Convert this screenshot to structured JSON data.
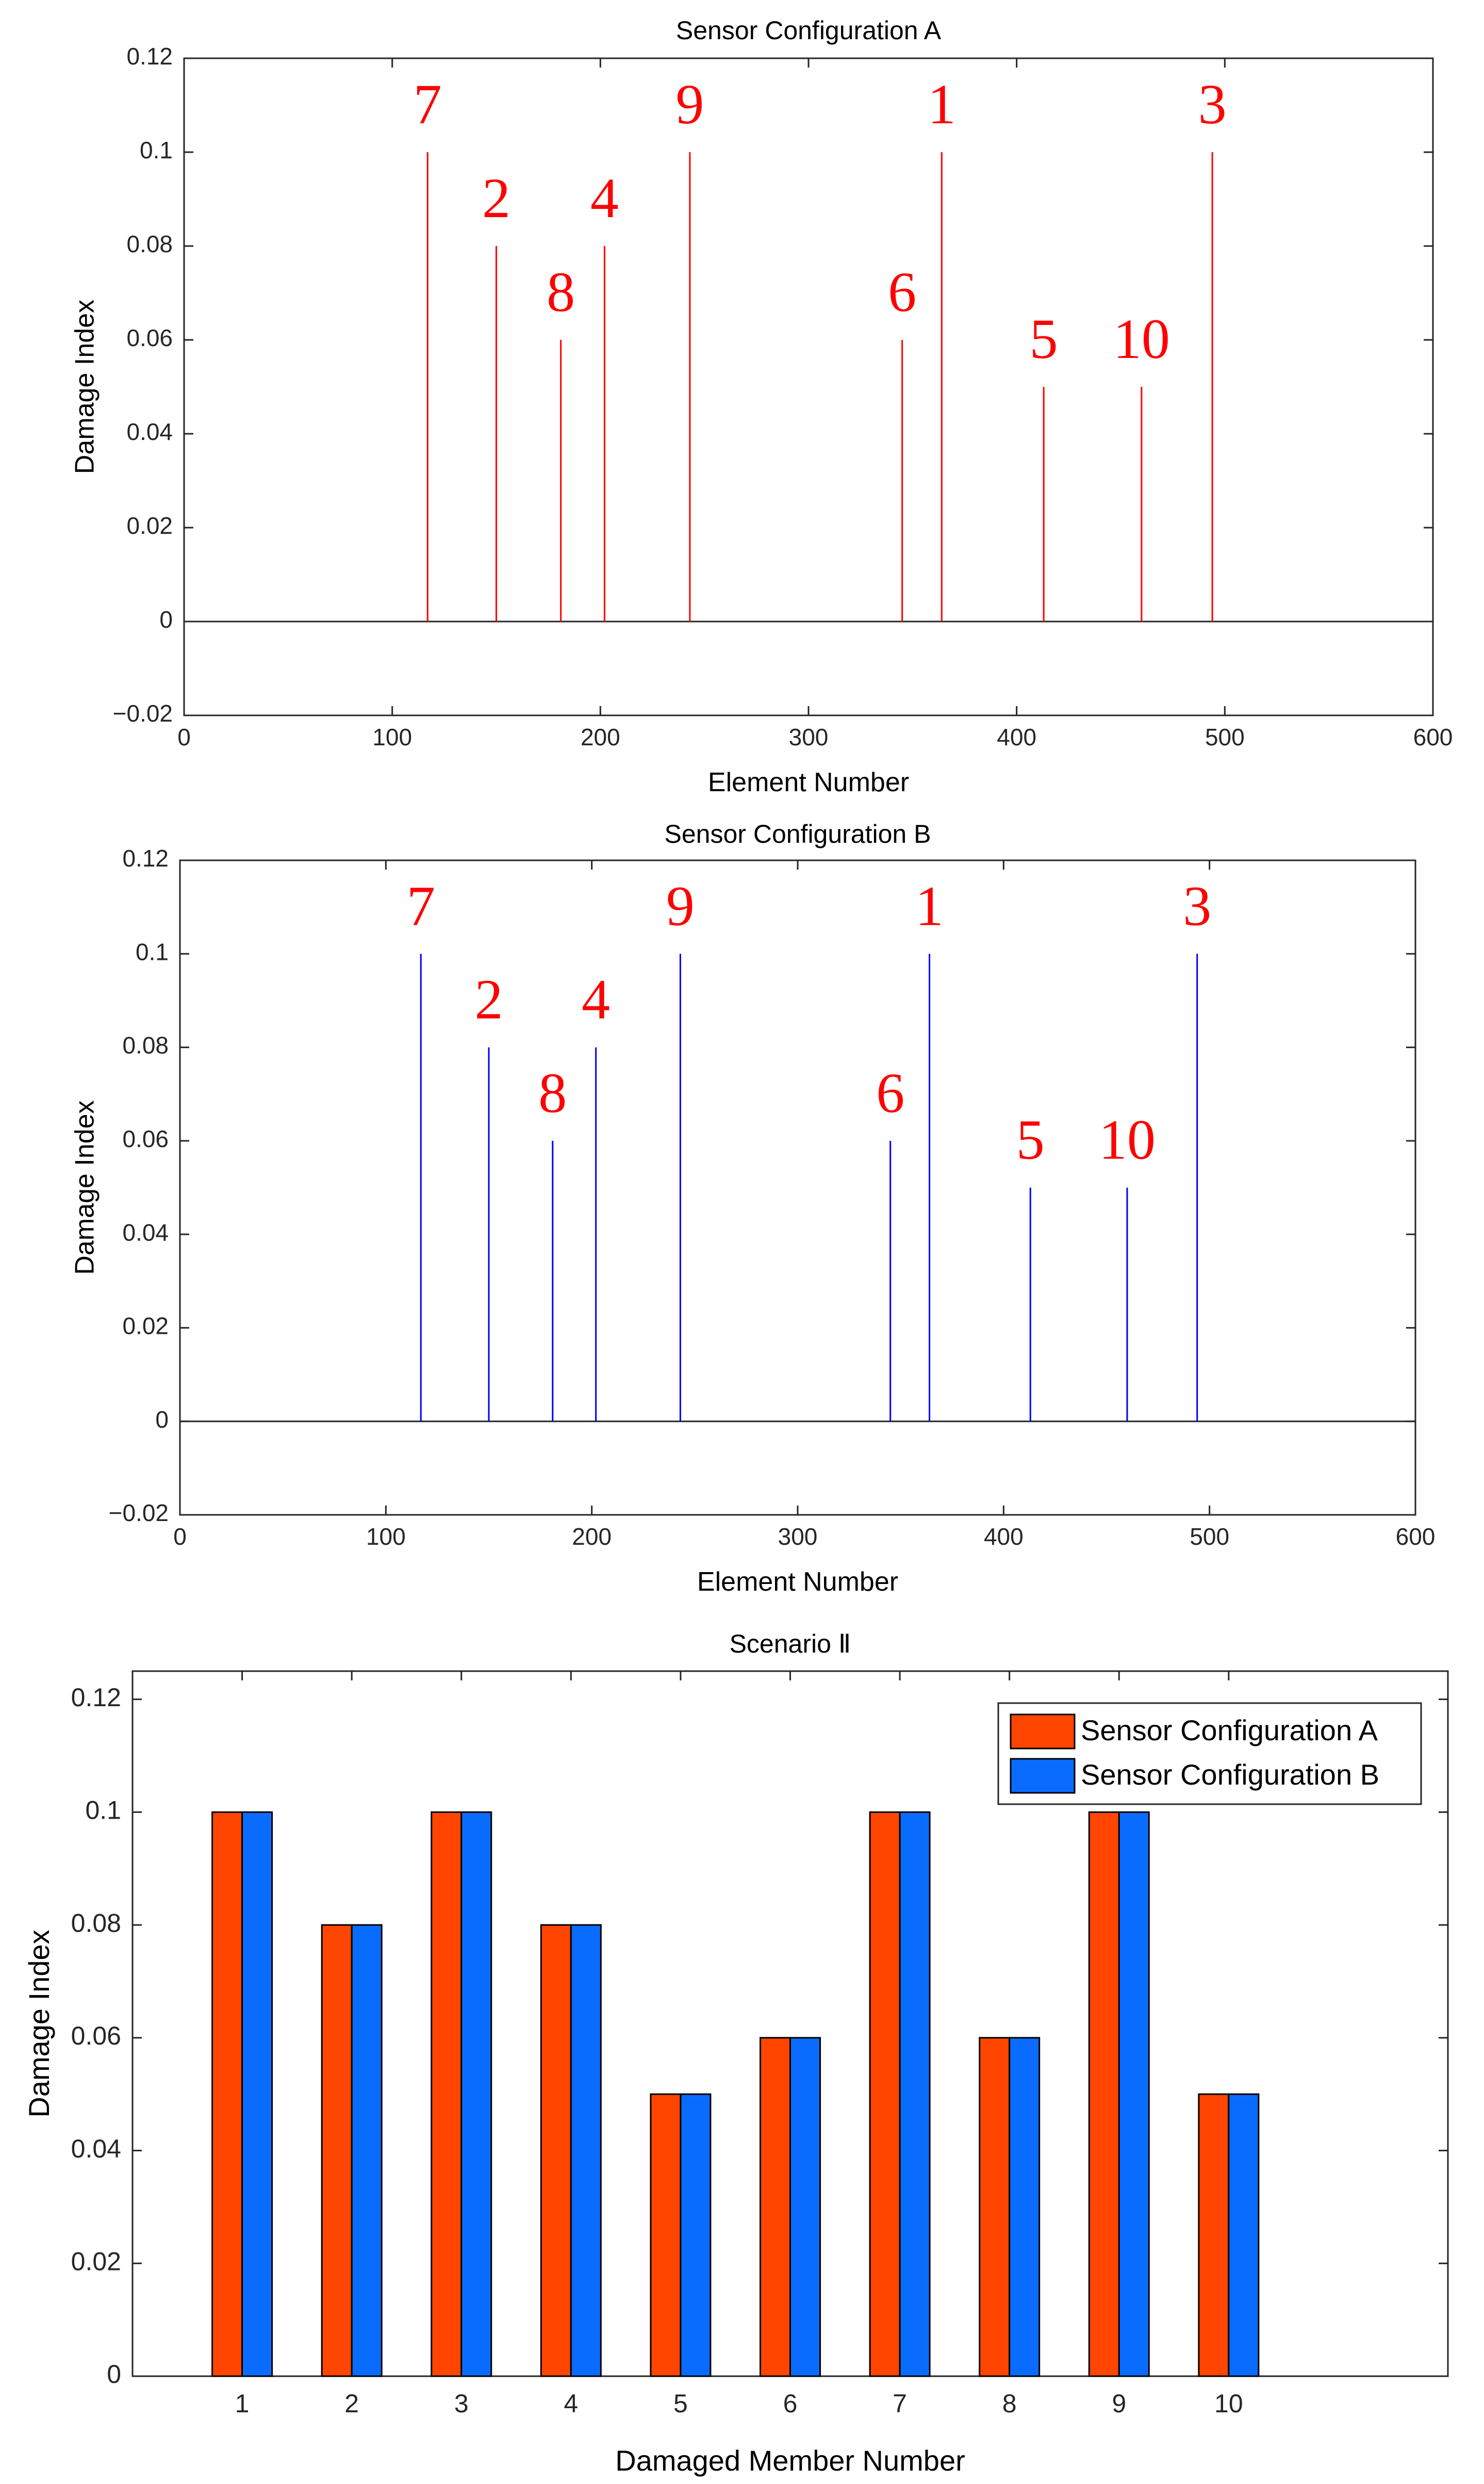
{
  "chart_data": [
    {
      "type": "stem",
      "title": "Sensor Configuration A",
      "xlabel": "Element Number",
      "ylabel": "Damage Index",
      "xlim": [
        0,
        600
      ],
      "ylim": [
        -0.02,
        0.12
      ],
      "xticks": [
        0,
        100,
        200,
        300,
        400,
        500,
        600
      ],
      "yticks": [
        -0.02,
        0,
        0.02,
        0.04,
        0.06,
        0.08,
        0.1,
        0.12
      ],
      "xtick_labels": [
        "0",
        "100",
        "200",
        "300",
        "400",
        "500",
        "600"
      ],
      "ytick_labels": [
        "−0.02",
        "0",
        "0.02",
        "0.04",
        "0.06",
        "0.08",
        "0.1",
        "0.12"
      ],
      "color": "#ff0000",
      "label_color": "#ff0000",
      "points": [
        {
          "x": 117,
          "y": 0.1,
          "label": "7"
        },
        {
          "x": 150,
          "y": 0.08,
          "label": "2"
        },
        {
          "x": 181,
          "y": 0.06,
          "label": "8"
        },
        {
          "x": 202,
          "y": 0.08,
          "label": "4"
        },
        {
          "x": 243,
          "y": 0.1,
          "label": "9"
        },
        {
          "x": 345,
          "y": 0.06,
          "label": "6"
        },
        {
          "x": 364,
          "y": 0.1,
          "label": "1"
        },
        {
          "x": 413,
          "y": 0.05,
          "label": "5"
        },
        {
          "x": 460,
          "y": 0.05,
          "label": "10"
        },
        {
          "x": 494,
          "y": 0.1,
          "label": "3"
        }
      ]
    },
    {
      "type": "stem",
      "title": "Sensor Configuration B",
      "xlabel": "Element Number",
      "ylabel": "Damage Index",
      "xlim": [
        0,
        600
      ],
      "ylim": [
        -0.02,
        0.12
      ],
      "xticks": [
        0,
        100,
        200,
        300,
        400,
        500,
        600
      ],
      "yticks": [
        -0.02,
        0,
        0.02,
        0.04,
        0.06,
        0.08,
        0.1,
        0.12
      ],
      "xtick_labels": [
        "0",
        "100",
        "200",
        "300",
        "400",
        "500",
        "600"
      ],
      "ytick_labels": [
        "−0.02",
        "0",
        "0.02",
        "0.04",
        "0.06",
        "0.08",
        "0.1",
        "0.12"
      ],
      "color": "#0000ff",
      "label_color": "#ff0000",
      "points": [
        {
          "x": 117,
          "y": 0.1,
          "label": "7"
        },
        {
          "x": 150,
          "y": 0.08,
          "label": "2"
        },
        {
          "x": 181,
          "y": 0.06,
          "label": "8"
        },
        {
          "x": 202,
          "y": 0.08,
          "label": "4"
        },
        {
          "x": 243,
          "y": 0.1,
          "label": "9"
        },
        {
          "x": 345,
          "y": 0.06,
          "label": "6"
        },
        {
          "x": 364,
          "y": 0.1,
          "label": "1"
        },
        {
          "x": 413,
          "y": 0.05,
          "label": "5"
        },
        {
          "x": 460,
          "y": 0.05,
          "label": "10"
        },
        {
          "x": 494,
          "y": 0.1,
          "label": "3"
        }
      ]
    },
    {
      "type": "bar",
      "title": "Scenario Ⅱ",
      "xlabel": "Damaged Member Number",
      "ylabel": "Damage Index",
      "xlim": [
        0,
        12
      ],
      "ylim": [
        0,
        0.125
      ],
      "yticks": [
        0,
        0.02,
        0.04,
        0.06,
        0.08,
        0.1,
        0.12
      ],
      "ytick_labels": [
        "0",
        "0.02",
        "0.04",
        "0.06",
        "0.08",
        "0.1",
        "0.12"
      ],
      "categories": [
        "1",
        "2",
        "3",
        "4",
        "5",
        "6",
        "7",
        "8",
        "9",
        "10"
      ],
      "legend_position": "top-right",
      "series": [
        {
          "name": "Sensor Configuration A",
          "color": "#ff4500",
          "values": [
            0.1,
            0.08,
            0.1,
            0.08,
            0.05,
            0.06,
            0.1,
            0.06,
            0.1,
            0.05
          ]
        },
        {
          "name": "Sensor Configuration B",
          "color": "#0a6cff",
          "values": [
            0.1,
            0.08,
            0.1,
            0.08,
            0.05,
            0.06,
            0.1,
            0.06,
            0.1,
            0.05
          ]
        }
      ]
    }
  ]
}
